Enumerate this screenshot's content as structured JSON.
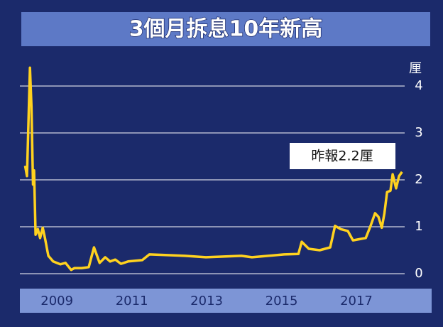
{
  "chart_data": {
    "type": "line",
    "title": "3個月拆息10年新高",
    "y_unit": "厘",
    "annotation": "昨報2.2厘",
    "x": [
      2008.65,
      2008.7,
      2008.78,
      2008.82,
      2008.86,
      2008.89,
      2008.93,
      2008.99,
      2009.05,
      2009.12,
      2009.18,
      2009.27,
      2009.4,
      2009.59,
      2009.73,
      2009.88,
      2009.97,
      2010.16,
      2010.35,
      2010.49,
      2010.64,
      2010.79,
      2010.92,
      2011.06,
      2011.21,
      2011.4,
      2011.78,
      2011.97,
      2012.92,
      2013.48,
      2014.43,
      2014.71,
      2015.57,
      2015.95,
      2016.04,
      2016.23,
      2016.52,
      2016.8,
      2016.93,
      2017.08,
      2017.27,
      2017.41,
      2017.75,
      2017.88,
      2018.0,
      2018.09,
      2018.18,
      2018.25,
      2018.32,
      2018.41,
      2018.47,
      2018.56,
      2018.64,
      2018.72
    ],
    "values": [
      2.3,
      2.08,
      4.39,
      3.56,
      1.9,
      2.2,
      0.83,
      0.95,
      0.76,
      0.98,
      0.76,
      0.38,
      0.26,
      0.2,
      0.23,
      0.08,
      0.12,
      0.12,
      0.14,
      0.56,
      0.23,
      0.35,
      0.26,
      0.3,
      0.21,
      0.26,
      0.29,
      0.41,
      0.38,
      0.35,
      0.38,
      0.35,
      0.41,
      0.42,
      0.68,
      0.53,
      0.5,
      0.56,
      1.02,
      0.95,
      0.91,
      0.71,
      0.76,
      1.02,
      1.29,
      1.21,
      0.98,
      1.29,
      1.74,
      1.77,
      2.12,
      1.82,
      2.08,
      2.17
    ],
    "color": "#ffd21f",
    "xlim": [
      2008.51,
      2018.79
    ],
    "xticks": [
      {
        "value": 2009.5,
        "label": "2009"
      },
      {
        "value": 2011.5,
        "label": "2011"
      },
      {
        "value": 2013.5,
        "label": "2013"
      },
      {
        "value": 2015.5,
        "label": "2015"
      },
      {
        "value": 2017.5,
        "label": "2017"
      }
    ],
    "ylim": [
      0,
      4.4
    ],
    "yticks": [
      0,
      1,
      2,
      3,
      4
    ],
    "grid": true
  }
}
